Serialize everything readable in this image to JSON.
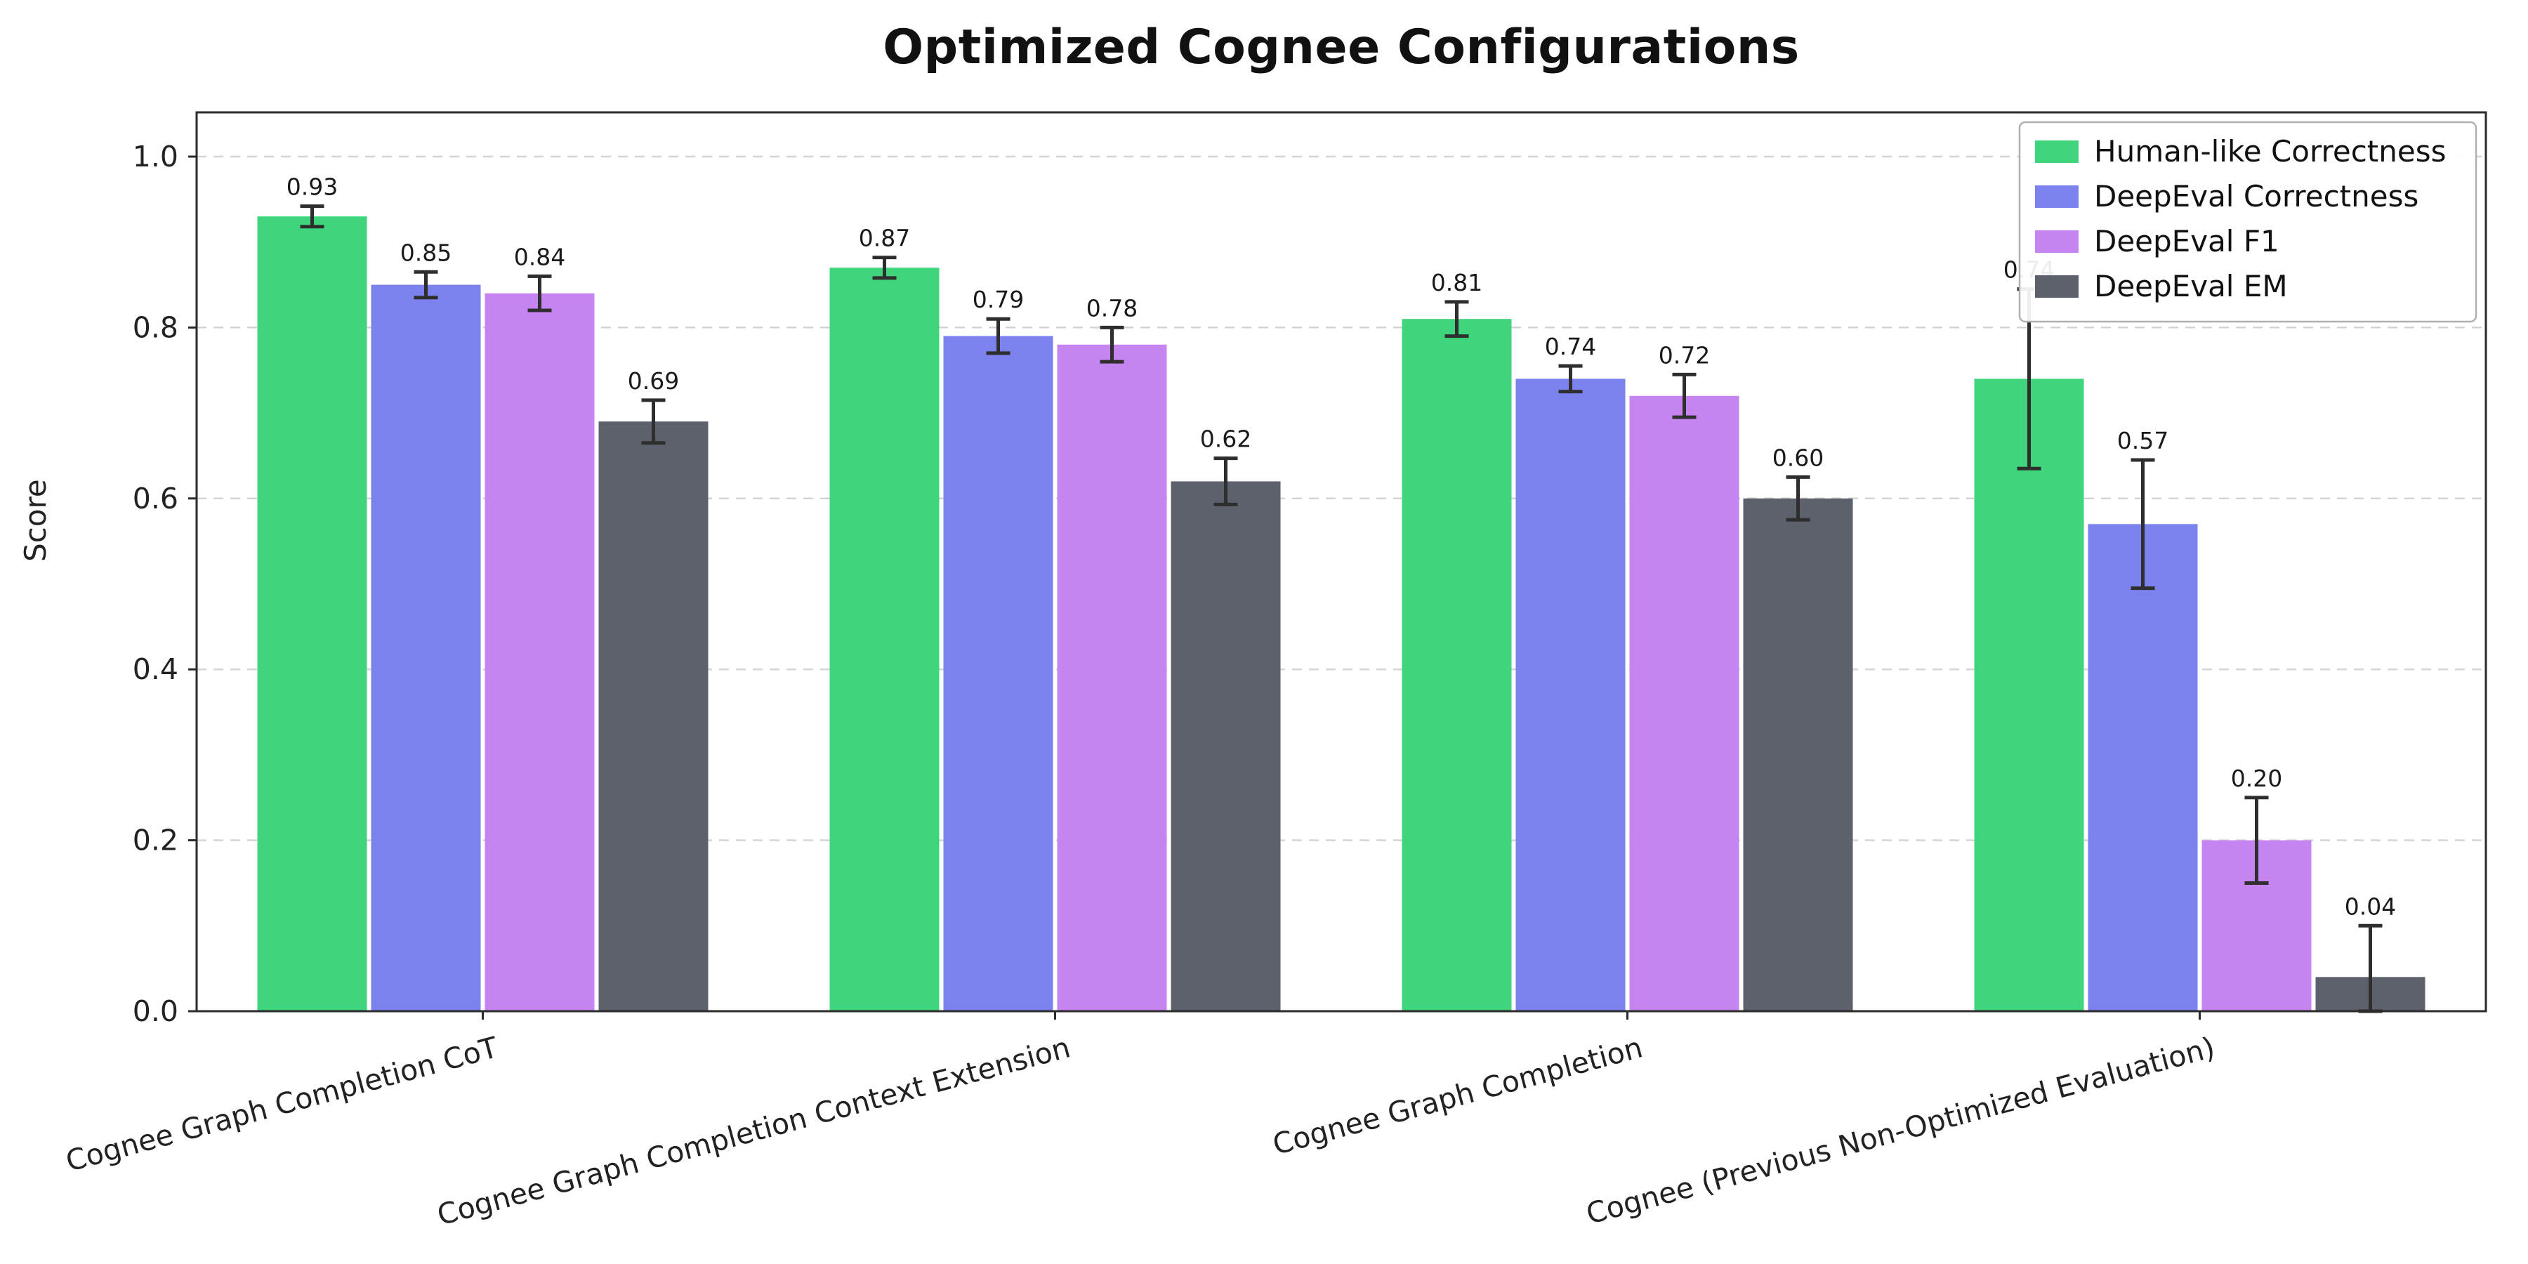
{
  "chart_data": {
    "type": "bar",
    "title": "Optimized Cognee Configurations",
    "xlabel": "",
    "ylabel": "Score",
    "ylim": [
      0,
      1.05
    ],
    "yticks": [
      0.0,
      0.2,
      0.4,
      0.6,
      0.8,
      1.0
    ],
    "grid": true,
    "grid_style": "dashed",
    "legend_position": "upper right",
    "categories": [
      "Cognee Graph Completion CoT",
      "Cognee Graph Completion Context Extension",
      "Cognee Graph Completion",
      "Cognee (Previous Non-Optimized Evaluation)"
    ],
    "series": [
      {
        "name": "Human-like Correctness",
        "color": "#3ed57c",
        "values": [
          0.93,
          0.87,
          0.81,
          0.74
        ],
        "errors": [
          0.012,
          0.012,
          0.02,
          0.105
        ]
      },
      {
        "name": "DeepEval Correctness",
        "color": "#7b82ed",
        "values": [
          0.85,
          0.79,
          0.74,
          0.57
        ],
        "errors": [
          0.015,
          0.02,
          0.015,
          0.075
        ]
      },
      {
        "name": "DeepEval F1",
        "color": "#c584f0",
        "values": [
          0.84,
          0.78,
          0.72,
          0.2
        ],
        "errors": [
          0.02,
          0.02,
          0.025,
          0.05
        ]
      },
      {
        "name": "DeepEval EM",
        "color": "#5d616b",
        "values": [
          0.69,
          0.62,
          0.6,
          0.04
        ],
        "errors": [
          0.025,
          0.027,
          0.025,
          0.06
        ]
      }
    ],
    "value_label_format": "0.00",
    "error_bar_color": "#2e2e2e",
    "frame_color": "#2b2b2b",
    "gridline_color": "#d4d4d4",
    "background_color": "#ffffff"
  }
}
